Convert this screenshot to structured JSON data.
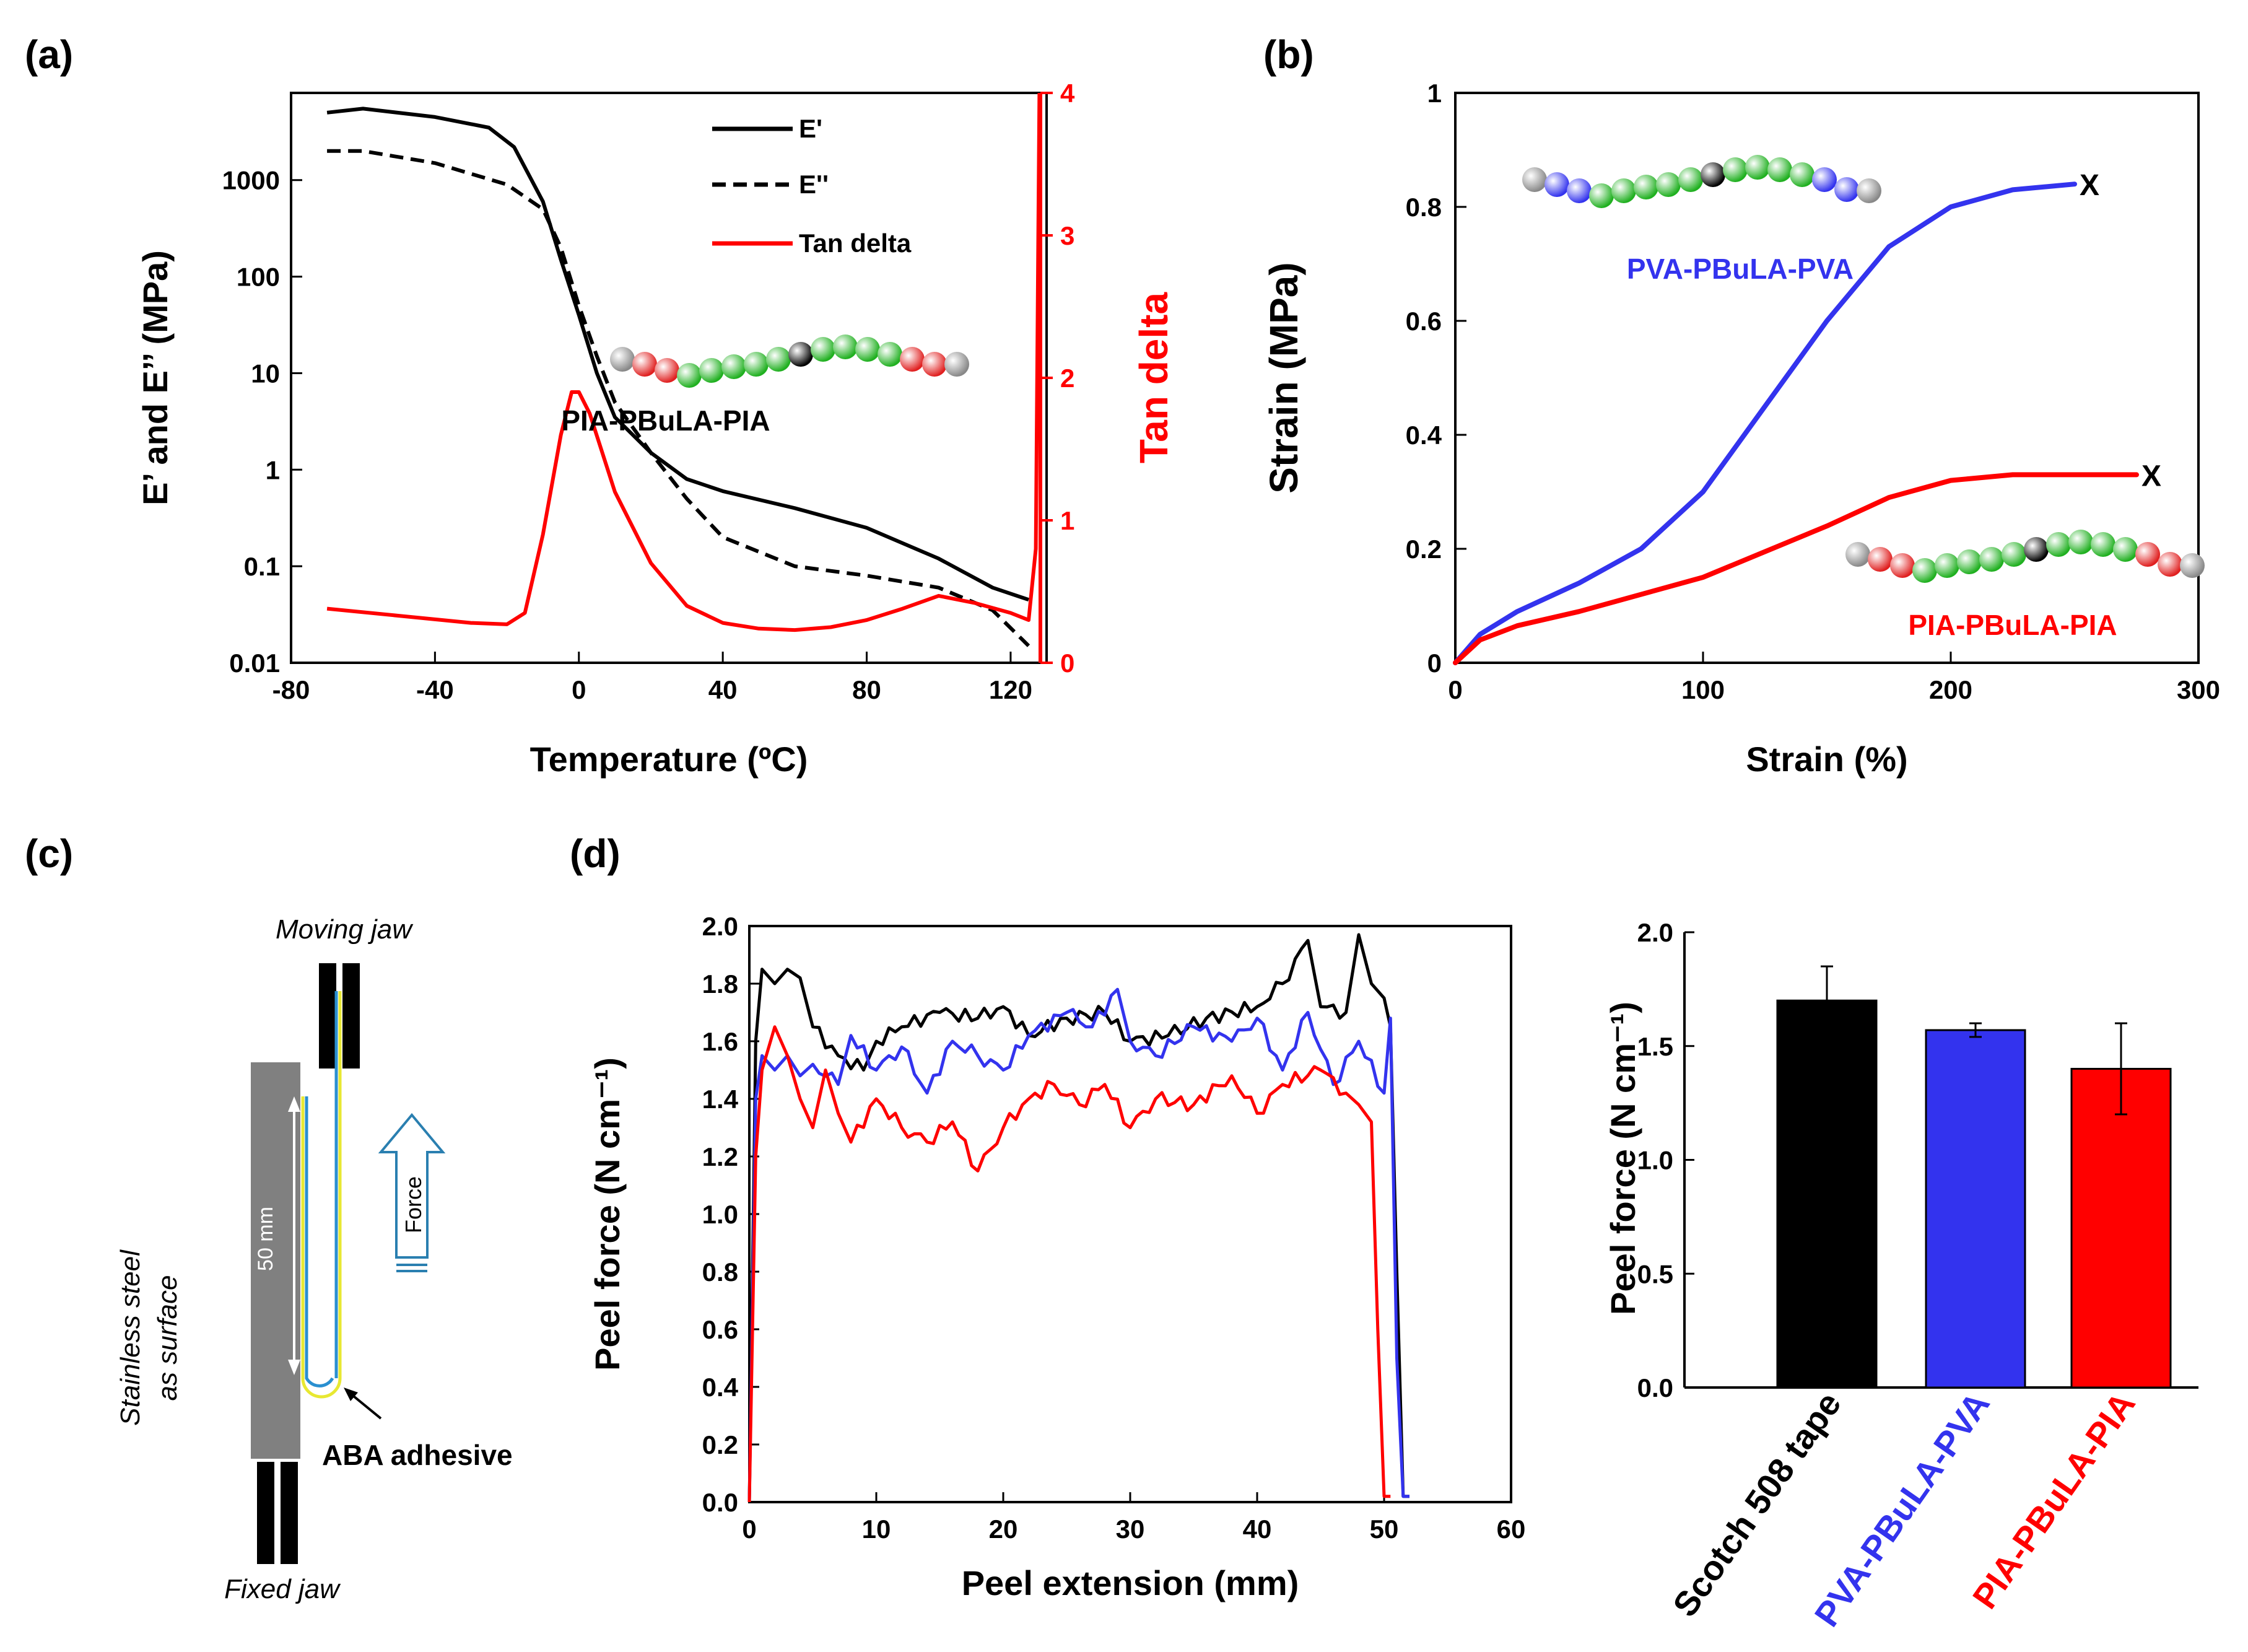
{
  "panel_labels": {
    "a": "(a)",
    "b": "(b)",
    "c": "(c)",
    "d": "(d)"
  },
  "chart_data": [
    {
      "id": "a",
      "type": "line",
      "xlabel": "Temperature (ºC)",
      "ylabel": "E’ and E’’ (MPa)",
      "y2label": "Tan delta",
      "xlim": [
        -80,
        130
      ],
      "xticks": [
        "-80",
        "-40",
        "0",
        "40",
        "80",
        "120"
      ],
      "ylim_log": [
        0.01,
        8000
      ],
      "yticks": [
        "0.01",
        "0.1",
        "1",
        "10",
        "100",
        "1000"
      ],
      "y2lim": [
        0,
        4
      ],
      "y2ticks": [
        "0",
        "1",
        "2",
        "3",
        "4"
      ],
      "legend": [
        "E'",
        "E''",
        "Tan delta"
      ],
      "annotation": "PIA-PBuLA-PIA",
      "series": [
        {
          "name": "E'",
          "color": "#000000",
          "dash": false,
          "x": [
            -70,
            -60,
            -40,
            -25,
            -18,
            -10,
            -5,
            0,
            5,
            10,
            20,
            30,
            40,
            60,
            80,
            100,
            115,
            125
          ],
          "y": [
            5000,
            5500,
            4500,
            3500,
            2200,
            600,
            150,
            40,
            10,
            3.5,
            1.5,
            0.8,
            0.6,
            0.4,
            0.25,
            0.12,
            0.06,
            0.045
          ]
        },
        {
          "name": "E''",
          "color": "#000000",
          "dash": true,
          "x": [
            -70,
            -60,
            -40,
            -20,
            -10,
            -5,
            0,
            5,
            10,
            20,
            30,
            40,
            60,
            80,
            100,
            115,
            125
          ],
          "y": [
            2000,
            2000,
            1500,
            900,
            500,
            200,
            50,
            15,
            5,
            1.5,
            0.5,
            0.2,
            0.1,
            0.08,
            0.06,
            0.035,
            0.015
          ]
        },
        {
          "name": "Tan delta",
          "color": "#ff0000",
          "dash": false,
          "axis": "right",
          "x": [
            -70,
            -50,
            -30,
            -20,
            -15,
            -10,
            -5,
            -2,
            0,
            3,
            10,
            20,
            30,
            40,
            50,
            60,
            70,
            80,
            90,
            100,
            110,
            120,
            125,
            127,
            128
          ],
          "y": [
            0.38,
            0.33,
            0.28,
            0.27,
            0.35,
            0.9,
            1.6,
            1.9,
            1.9,
            1.75,
            1.2,
            0.7,
            0.4,
            0.28,
            0.24,
            0.23,
            0.25,
            0.3,
            0.38,
            0.47,
            0.42,
            0.35,
            0.3,
            0.8,
            4.0
          ]
        }
      ]
    },
    {
      "id": "b",
      "type": "line",
      "xlabel": "Strain (%)",
      "ylabel": "Strain (MPa)",
      "xlim": [
        0,
        300
      ],
      "xticks": [
        "0",
        "100",
        "200",
        "300"
      ],
      "ylim": [
        0,
        1
      ],
      "yticks": [
        "0",
        "0.2",
        "0.4",
        "0.6",
        "0.8",
        "1"
      ],
      "break_mark": "X",
      "series": [
        {
          "name": "PVA-PBuLA-PVA",
          "color": "#3333ee",
          "x": [
            0,
            10,
            25,
            50,
            75,
            100,
            125,
            150,
            175,
            200,
            225,
            250
          ],
          "y": [
            0,
            0.05,
            0.09,
            0.14,
            0.2,
            0.3,
            0.45,
            0.6,
            0.73,
            0.8,
            0.83,
            0.84
          ]
        },
        {
          "name": "PIA-PBuLA-PIA",
          "color": "#ff0000",
          "x": [
            0,
            10,
            25,
            50,
            100,
            150,
            175,
            200,
            225,
            250,
            275
          ],
          "y": [
            0,
            0.04,
            0.065,
            0.09,
            0.15,
            0.24,
            0.29,
            0.32,
            0.33,
            0.33,
            0.33
          ]
        }
      ]
    },
    {
      "id": "d-left",
      "type": "line",
      "xlabel": "Peel extension (mm)",
      "ylabel": "Peel force (N cm⁻¹)",
      "xlim": [
        0,
        60
      ],
      "xticks": [
        "0",
        "10",
        "20",
        "30",
        "40",
        "50",
        "60"
      ],
      "ylim": [
        0,
        2
      ],
      "yticks": [
        "0.0",
        "0.2",
        "0.4",
        "0.6",
        "0.8",
        "1.0",
        "1.2",
        "1.4",
        "1.6",
        "1.8",
        "2.0"
      ],
      "series": [
        {
          "name": "Scotch 508 tape",
          "color": "#000000",
          "x": [
            0,
            0.5,
            1,
            2,
            3,
            4,
            5,
            7,
            9,
            10,
            12,
            15,
            18,
            20,
            22,
            25,
            28,
            30,
            33,
            36,
            40,
            42,
            44,
            45,
            47,
            48,
            49,
            50,
            50.5,
            51,
            51.5,
            52
          ],
          "y": [
            0,
            1.6,
            1.85,
            1.8,
            1.85,
            1.82,
            1.65,
            1.55,
            1.5,
            1.6,
            1.65,
            1.7,
            1.68,
            1.72,
            1.62,
            1.68,
            1.7,
            1.6,
            1.62,
            1.68,
            1.72,
            1.8,
            1.95,
            1.72,
            1.7,
            1.97,
            1.8,
            1.75,
            1.65,
            0.8,
            0.02,
            0.02
          ]
        },
        {
          "name": "PVA-PBuLA-PVA",
          "color": "#3333ee",
          "x": [
            0,
            0.5,
            1,
            2,
            3,
            4,
            5,
            7,
            8,
            10,
            12,
            14,
            16,
            18,
            20,
            22,
            25,
            27,
            29,
            30,
            32,
            35,
            38,
            40,
            42,
            44,
            46,
            48,
            50,
            50.5,
            51,
            51.5,
            52
          ],
          "y": [
            0,
            1.4,
            1.55,
            1.5,
            1.55,
            1.48,
            1.52,
            1.45,
            1.62,
            1.5,
            1.58,
            1.42,
            1.6,
            1.55,
            1.5,
            1.62,
            1.7,
            1.65,
            1.78,
            1.6,
            1.55,
            1.65,
            1.6,
            1.68,
            1.5,
            1.7,
            1.45,
            1.6,
            1.42,
            1.68,
            0.5,
            0.02,
            0.02
          ]
        },
        {
          "name": "PIA-PBuLA-PIA",
          "color": "#ff0000",
          "x": [
            0,
            0.5,
            1,
            2,
            3,
            4,
            5,
            6,
            7,
            8,
            10,
            12,
            14,
            16,
            18,
            20,
            22,
            24,
            26,
            28,
            30,
            32,
            35,
            38,
            40,
            42,
            45,
            47,
            48,
            49,
            49.5,
            50,
            50.5
          ],
          "y": [
            0,
            1.2,
            1.5,
            1.65,
            1.55,
            1.4,
            1.3,
            1.5,
            1.35,
            1.25,
            1.4,
            1.3,
            1.25,
            1.32,
            1.15,
            1.3,
            1.4,
            1.45,
            1.38,
            1.45,
            1.3,
            1.4,
            1.38,
            1.48,
            1.35,
            1.45,
            1.5,
            1.42,
            1.38,
            1.32,
            0.6,
            0.02,
            0.02
          ]
        }
      ]
    },
    {
      "id": "d-right",
      "type": "bar",
      "ylabel": "Peel force (N cm⁻¹)",
      "ylim": [
        0,
        2
      ],
      "yticks": [
        "0.0",
        "0.5",
        "1.0",
        "1.5",
        "2.0"
      ],
      "categories": [
        "Scotch 508 tape",
        "PVA-PBuLA-PVA",
        "PIA-PBuLA-PIA"
      ],
      "values": [
        1.7,
        1.57,
        1.4
      ],
      "errors": [
        0.15,
        0.03,
        0.2
      ],
      "colors": [
        "#000000",
        "#3333ee",
        "#ff0000"
      ]
    }
  ],
  "schematic": {
    "moving_jaw": "Moving jaw",
    "fixed_jaw": "Fixed jaw",
    "surface_line1": "Stainless steel",
    "surface_line2": "as surface",
    "length": "50 mm",
    "force": "Force",
    "adhesive": "ABA adhesive"
  },
  "molecules": {
    "a_label": "PIA-PBuLA-PIA",
    "b_blue_label": "PVA-PBuLA-PVA",
    "b_red_label": "PIA-PBuLA-PIA"
  }
}
